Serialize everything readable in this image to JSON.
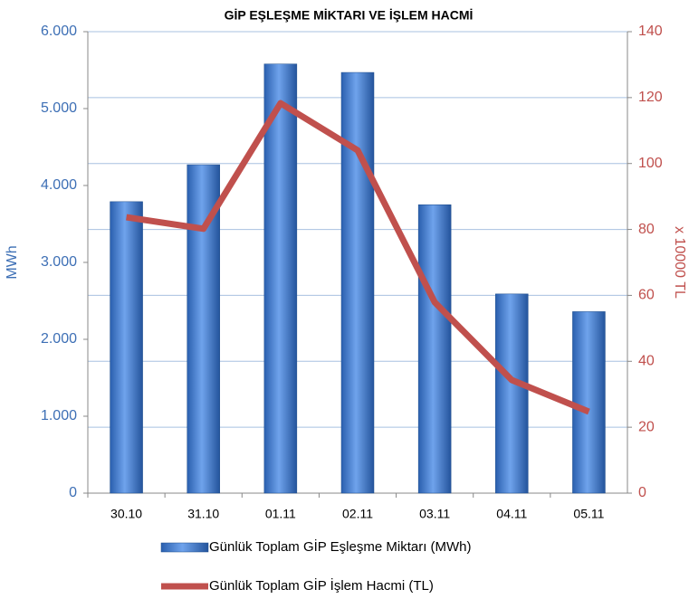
{
  "chart_data": {
    "type": "bar",
    "title": "GİP EŞLEŞME MİKTARI VE İŞLEM HACMİ",
    "y_label": "MWh",
    "y2_label": "x 10000 TL",
    "categories": [
      "30.10",
      "31.10",
      "01.11",
      "02.11",
      "03.11",
      "04.11",
      "05.11"
    ],
    "series": [
      {
        "name": "Günlük Toplam GİP Eşleşme Miktarı (MWh)",
        "color": "#3d78cc",
        "type": "bar",
        "values": [
          3790,
          4270,
          5580,
          5470,
          3750,
          2590,
          2360
        ]
      },
      {
        "name": "Günlük Toplam GİP İşlem Hacmi (TL)",
        "color": "#c0504d",
        "type": "line",
        "axis": "y2",
        "values": [
          83.7,
          80.2,
          118.3,
          104,
          57.9,
          34.3,
          24.7
        ]
      }
    ],
    "ylim": [
      0,
      6000
    ],
    "yticks": [
      0,
      {
        "value": 1000,
        "label": "1.000"
      },
      {
        "value": 2000,
        "label": "2.000"
      },
      {
        "value": 3000,
        "label": "3.000"
      },
      {
        "value": 4000,
        "label": "4.000"
      },
      {
        "value": 5000,
        "label": "5.000"
      },
      {
        "value": 6000,
        "label": "6.000"
      }
    ],
    "y2lim": [
      0,
      140
    ],
    "y2ticks": [
      0,
      20,
      40,
      60,
      80,
      100,
      120,
      140
    ],
    "grid": true,
    "legend": "bottom"
  }
}
